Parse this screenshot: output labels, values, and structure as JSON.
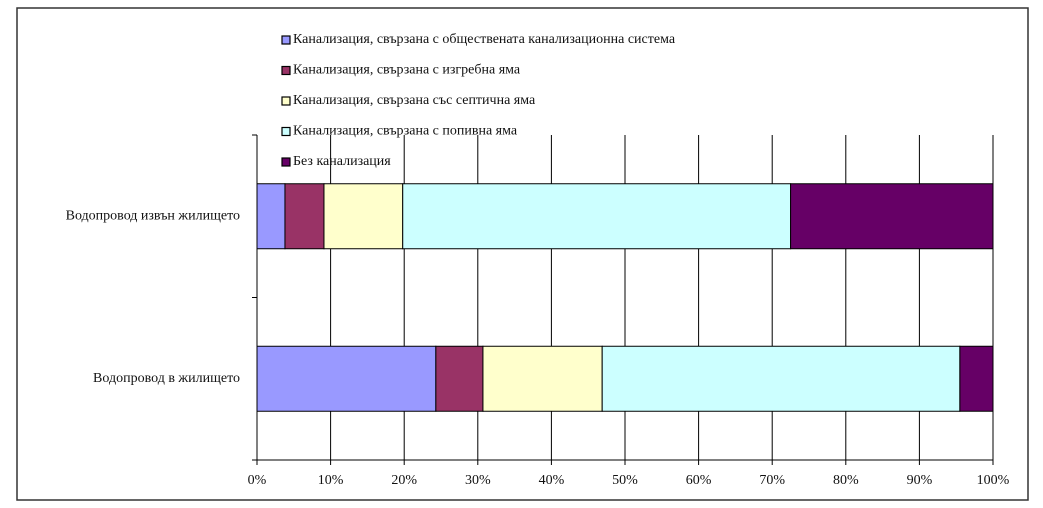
{
  "chart_data": {
    "type": "stacked-barh",
    "categories": [
      "Водопровод в жилището",
      "Водопровод извън жилището"
    ],
    "series": [
      {
        "name": "Канализация, свързана с обществената канализационна система",
        "color": "#9999ff",
        "values": [
          24.3,
          3.8
        ]
      },
      {
        "name": "Канализация, свързана с изгребна яма",
        "color": "#993366",
        "values": [
          6.4,
          5.3
        ]
      },
      {
        "name": "Канализация, свързана със септична яма",
        "color": "#ffffcc",
        "values": [
          16.2,
          10.7
        ]
      },
      {
        "name": "Канализация, свързана с попивна яма",
        "color": "#ccffff",
        "values": [
          48.6,
          52.7
        ]
      },
      {
        "name": "Без канализация",
        "color": "#660066",
        "values": [
          4.5,
          27.5
        ]
      }
    ],
    "xlim": [
      0,
      100
    ],
    "xticks": [
      {
        "value": 0,
        "label": "0%"
      },
      {
        "value": 10,
        "label": "10%"
      },
      {
        "value": 20,
        "label": "20%"
      },
      {
        "value": 30,
        "label": "30%"
      },
      {
        "value": 40,
        "label": "40%"
      },
      {
        "value": 50,
        "label": "50%"
      },
      {
        "value": 60,
        "label": "60%"
      },
      {
        "value": 70,
        "label": "70%"
      },
      {
        "value": 80,
        "label": "80%"
      },
      {
        "value": 90,
        "label": "90%"
      },
      {
        "value": 100,
        "label": "100%"
      }
    ],
    "grid": true
  }
}
